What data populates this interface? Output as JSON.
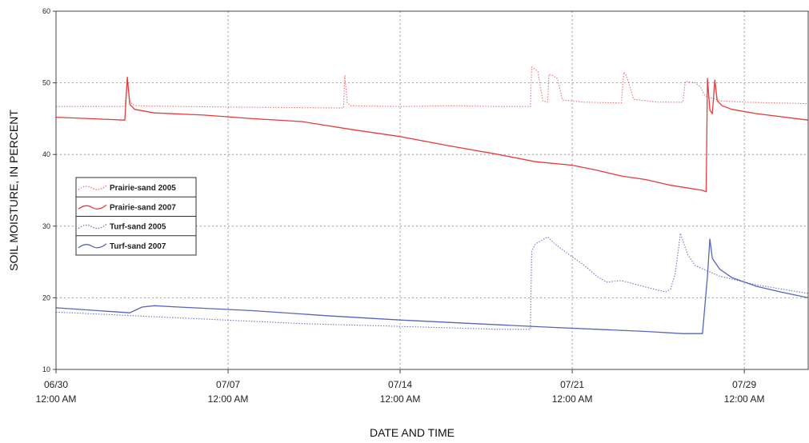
{
  "chart_data": {
    "type": "line",
    "xlabel": "DATE AND TIME",
    "ylabel": "SOIL MOISTURE, IN PERCENT",
    "xlim": [
      0,
      30.6
    ],
    "ylim": [
      10,
      60
    ],
    "y_ticks": [
      10,
      20,
      30,
      40,
      50,
      60
    ],
    "x_ticks": [
      {
        "day": 0,
        "date": "06/30",
        "time": "12:00 AM"
      },
      {
        "day": 7,
        "date": "07/07",
        "time": "12:00 AM"
      },
      {
        "day": 14,
        "date": "07/14",
        "time": "12:00 AM"
      },
      {
        "day": 21,
        "date": "07/21",
        "time": "12:00 AM"
      },
      {
        "day": 28,
        "date": "07/29",
        "time": "12:00 AM"
      }
    ],
    "grid": true,
    "legend_position": "middle-left",
    "series": [
      {
        "name": "Prairie-sand 2005",
        "color": "#f07070",
        "style": "dotted",
        "x": [
          0,
          2.8,
          2.9,
          3.0,
          3.1,
          3.3,
          5,
          8,
          11.7,
          11.75,
          11.85,
          12.0,
          14,
          16,
          18,
          19.3,
          19.35,
          19.45,
          19.6,
          19.8,
          20.0,
          20.05,
          20.2,
          20.4,
          20.6,
          21.5,
          23.0,
          23.1,
          23.2,
          23.5,
          24.5,
          25.5,
          25.6,
          26.0,
          26.2,
          26.4,
          27.0,
          28.0,
          30.6
        ],
        "y": [
          46.7,
          46.7,
          50.2,
          47.5,
          47.0,
          46.8,
          46.7,
          46.6,
          46.5,
          51.0,
          47.2,
          46.8,
          46.7,
          46.8,
          46.7,
          46.7,
          52.2,
          52.0,
          51.6,
          47.5,
          47.3,
          51.2,
          51.0,
          50.6,
          47.6,
          47.3,
          47.2,
          51.5,
          51.0,
          47.7,
          47.3,
          47.3,
          50.2,
          50.0,
          49.5,
          48.2,
          47.5,
          47.3,
          47.1
        ]
      },
      {
        "name": "Prairie-sand 2007",
        "color": "#e83a3a",
        "style": "solid",
        "x": [
          0,
          2.8,
          2.9,
          3.0,
          3.2,
          4,
          6,
          8,
          10,
          12,
          14,
          16,
          18,
          19.5,
          21,
          22,
          23,
          24,
          25,
          26.3,
          26.45,
          26.5,
          26.6,
          26.7,
          26.8,
          26.9,
          27.1,
          27.5,
          28.5,
          30.6
        ],
        "y": [
          45.2,
          44.8,
          50.8,
          47.0,
          46.3,
          45.8,
          45.5,
          45.0,
          44.6,
          43.5,
          42.5,
          41.2,
          40.0,
          39.0,
          38.5,
          37.8,
          37.0,
          36.5,
          35.7,
          35.0,
          34.8,
          50.6,
          46.2,
          45.7,
          50.4,
          47.5,
          46.8,
          46.3,
          45.7,
          44.8
        ]
      },
      {
        "name": "Turf-sand 2005",
        "color": "#6677cc",
        "style": "dotted",
        "x": [
          0,
          5,
          10,
          14,
          18,
          19.3,
          19.35,
          19.5,
          20.0,
          20.3,
          20.8,
          21.5,
          22.0,
          22.4,
          23.0,
          24.0,
          24.8,
          25.0,
          25.2,
          25.4,
          25.5,
          25.7,
          26.0,
          27.0,
          28.5,
          30.6
        ],
        "y": [
          18.0,
          17.2,
          16.4,
          16.0,
          15.6,
          15.6,
          26.5,
          27.5,
          28.5,
          27.5,
          26.2,
          24.5,
          23.0,
          22.2,
          22.4,
          21.5,
          20.8,
          21.2,
          23.5,
          29.0,
          28.0,
          26.0,
          24.5,
          23.0,
          21.8,
          20.6
        ]
      },
      {
        "name": "Turf-sand 2007",
        "color": "#5566bb",
        "style": "solid",
        "x": [
          0,
          3.0,
          3.5,
          4.0,
          5,
          8,
          11,
          14,
          17,
          20,
          22,
          24,
          25.5,
          26.3,
          26.5,
          26.6,
          26.7,
          27.0,
          27.5,
          28.5,
          29.5,
          30.6
        ],
        "y": [
          18.6,
          17.9,
          18.7,
          18.9,
          18.7,
          18.2,
          17.5,
          16.9,
          16.4,
          15.9,
          15.6,
          15.3,
          15.0,
          15.0,
          23.0,
          28.2,
          25.5,
          24.0,
          22.8,
          21.6,
          20.8,
          20.0
        ]
      }
    ]
  }
}
